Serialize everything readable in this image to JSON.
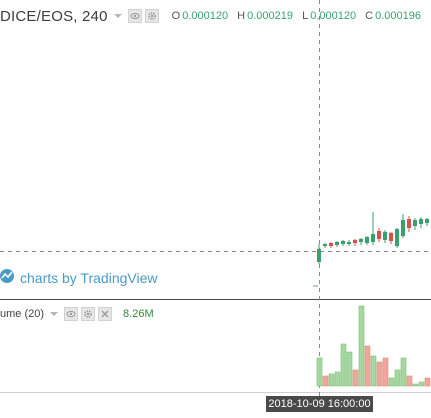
{
  "legend": {
    "symbol": "DICE/EOS, 240",
    "ohlc": [
      {
        "key": "O",
        "value": "0.000120"
      },
      {
        "key": "H",
        "value": "0.000219"
      },
      {
        "key": "L",
        "value": "0.000120"
      },
      {
        "key": "C",
        "value": "0.000196"
      }
    ]
  },
  "watermark": {
    "text": "charts by TradingView",
    "icon": "tradingview-logo-icon"
  },
  "volume": {
    "label": "ume (20)",
    "value": "8.26M",
    "icons": [
      "eye-icon",
      "gear-icon",
      "close-icon"
    ]
  },
  "crosshair": {
    "time_label": "2018-10-09 16:00:00"
  },
  "colors": {
    "up": "#3aa06e",
    "down": "#d9504e",
    "vol_up": "#a6d6a1",
    "vol_down": "#f1a59d",
    "accent": "#4a9bc6"
  }
}
